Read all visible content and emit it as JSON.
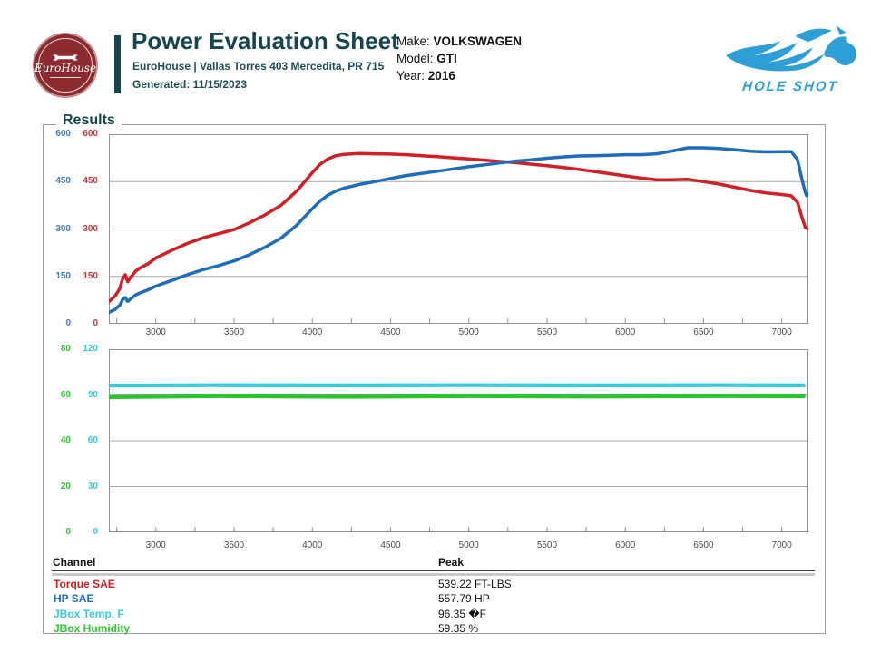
{
  "header": {
    "logo_text": "EuroHouse",
    "title": "Power Evaluation Sheet",
    "subtitle": "EuroHouse | Vallas Torres 403 Mercedita, PR 715",
    "generated": "Generated: 11/15/2023",
    "vehicle": {
      "make_label": "Make:",
      "make": "VOLKSWAGEN",
      "model_label": "Model:",
      "model": "GTI",
      "year_label": "Year:",
      "year": "2016"
    },
    "partner": "HOLE SHOT"
  },
  "results": {
    "legend": "Results"
  },
  "colors": {
    "teal": "#17454f",
    "maroon": "#8c2b2f",
    "partner_blue": "#2e9fd6",
    "torque_red": "#cd2027",
    "hp_blue": "#1f6cb8",
    "temp_cyan": "#35c8e4",
    "humidity_green": "#2cc42d",
    "grid": "#a8a8a8",
    "plot_border": "#8f9499"
  },
  "chart_data": [
    {
      "type": "line",
      "title": "",
      "xlabel": "",
      "x_range": [
        2700,
        7170
      ],
      "x_ticks": [
        3000,
        3500,
        4000,
        4500,
        5000,
        5500,
        6000,
        6500,
        7000
      ],
      "x_minor_tick_step": 250,
      "grid": true,
      "legend_position": "none",
      "axes": {
        "outer": {
          "name": "HP",
          "color": "#3d7dc4",
          "ticks": [
            600,
            450,
            300,
            150,
            0
          ],
          "range": [
            0,
            600
          ]
        },
        "inner": {
          "name": "Torque",
          "color": "#c43a3f",
          "ticks": [
            600,
            450,
            300,
            150,
            0
          ],
          "range": [
            0,
            600
          ]
        }
      },
      "series": [
        {
          "name": "Torque SAE",
          "color": "#cd2027",
          "axis_max": 600,
          "units": "FT-LBS",
          "peak": 539.22,
          "points": [
            [
              2700,
              70
            ],
            [
              2740,
              88
            ],
            [
              2770,
              112
            ],
            [
              2790,
              146
            ],
            [
              2805,
              155
            ],
            [
              2820,
              133
            ],
            [
              2840,
              147
            ],
            [
              2870,
              166
            ],
            [
              2900,
              177
            ],
            [
              2950,
              190
            ],
            [
              3000,
              208
            ],
            [
              3100,
              232
            ],
            [
              3200,
              254
            ],
            [
              3300,
              272
            ],
            [
              3400,
              285
            ],
            [
              3500,
              298
            ],
            [
              3600,
              320
            ],
            [
              3700,
              345
            ],
            [
              3800,
              375
            ],
            [
              3900,
              420
            ],
            [
              4000,
              478
            ],
            [
              4050,
              505
            ],
            [
              4100,
              522
            ],
            [
              4150,
              532
            ],
            [
              4200,
              536
            ],
            [
              4300,
              539
            ],
            [
              4400,
              538
            ],
            [
              4500,
              537
            ],
            [
              4600,
              535
            ],
            [
              4700,
              532
            ],
            [
              4800,
              529
            ],
            [
              4900,
              525
            ],
            [
              5000,
              522
            ],
            [
              5100,
              518
            ],
            [
              5200,
              514
            ],
            [
              5300,
              510
            ],
            [
              5400,
              505
            ],
            [
              5500,
              500
            ],
            [
              5600,
              495
            ],
            [
              5700,
              489
            ],
            [
              5800,
              482
            ],
            [
              5900,
              475
            ],
            [
              6000,
              468
            ],
            [
              6100,
              461
            ],
            [
              6200,
              456
            ],
            [
              6300,
              456
            ],
            [
              6400,
              457
            ],
            [
              6500,
              450
            ],
            [
              6600,
              442
            ],
            [
              6700,
              432
            ],
            [
              6800,
              422
            ],
            [
              6900,
              414
            ],
            [
              7000,
              409
            ],
            [
              7060,
              405
            ],
            [
              7100,
              385
            ],
            [
              7130,
              335
            ],
            [
              7150,
              305
            ],
            [
              7170,
              299
            ]
          ]
        },
        {
          "name": "HP SAE",
          "color": "#1f6cb8",
          "axis_max": 600,
          "units": "HP",
          "peak": 557.79,
          "points": [
            [
              2700,
              36
            ],
            [
              2740,
              46
            ],
            [
              2770,
              59
            ],
            [
              2790,
              78
            ],
            [
              2805,
              83
            ],
            [
              2820,
              71
            ],
            [
              2840,
              79
            ],
            [
              2870,
              91
            ],
            [
              2900,
              98
            ],
            [
              2950,
              107
            ],
            [
              3000,
              119
            ],
            [
              3100,
              137
            ],
            [
              3200,
              155
            ],
            [
              3300,
              171
            ],
            [
              3400,
              184
            ],
            [
              3500,
              199
            ],
            [
              3600,
              219
            ],
            [
              3700,
              243
            ],
            [
              3800,
              271
            ],
            [
              3900,
              312
            ],
            [
              4000,
              364
            ],
            [
              4050,
              389
            ],
            [
              4100,
              407
            ],
            [
              4150,
              420
            ],
            [
              4200,
              429
            ],
            [
              4300,
              441
            ],
            [
              4400,
              450
            ],
            [
              4500,
              460
            ],
            [
              4600,
              469
            ],
            [
              4700,
              476
            ],
            [
              4800,
              483
            ],
            [
              4900,
              490
            ],
            [
              5000,
              497
            ],
            [
              5100,
              503
            ],
            [
              5200,
              509
            ],
            [
              5300,
              515
            ],
            [
              5400,
              519
            ],
            [
              5500,
              524
            ],
            [
              5600,
              528
            ],
            [
              5700,
              531
            ],
            [
              5800,
              532
            ],
            [
              5900,
              533
            ],
            [
              6000,
              535
            ],
            [
              6100,
              535
            ],
            [
              6200,
              538
            ],
            [
              6300,
              547
            ],
            [
              6400,
              557
            ],
            [
              6500,
              557
            ],
            [
              6600,
              555
            ],
            [
              6700,
              551
            ],
            [
              6800,
              546
            ],
            [
              6900,
              544
            ],
            [
              7000,
              545
            ],
            [
              7060,
              545
            ],
            [
              7100,
              520
            ],
            [
              7130,
              455
            ],
            [
              7150,
              415
            ],
            [
              7158,
              406
            ],
            [
              7170,
              412
            ]
          ]
        }
      ]
    },
    {
      "type": "line",
      "title": "",
      "xlabel": "",
      "x_range": [
        2700,
        7170
      ],
      "x_ticks": [
        3000,
        3500,
        4000,
        4500,
        5000,
        5500,
        6000,
        6500,
        7000
      ],
      "x_minor_tick_step": 250,
      "grid": true,
      "legend_position": "none",
      "axes": {
        "outer": {
          "name": "Humidity %",
          "color": "#2cc42d",
          "ticks": [
            80,
            60,
            40,
            20,
            0
          ],
          "range": [
            0,
            80
          ]
        },
        "inner": {
          "name": "Temp F",
          "color": "#35c8e4",
          "ticks": [
            120,
            90,
            60,
            30,
            0
          ],
          "range": [
            0,
            120
          ]
        }
      },
      "series": [
        {
          "name": "JBox Temp. F",
          "color": "#35c8e4",
          "axis_max": 120,
          "units": "�F",
          "peak": 96.35,
          "points": [
            [
              2700,
              96.2
            ],
            [
              3400,
              96.4
            ],
            [
              4200,
              96.3
            ],
            [
              5000,
              96.4
            ],
            [
              5800,
              96.3
            ],
            [
              6600,
              96.4
            ],
            [
              7140,
              96.3
            ]
          ]
        },
        {
          "name": "JBox Humidity",
          "color": "#2cc42d",
          "axis_max": 80,
          "units": "%",
          "peak": 59.35,
          "points": [
            [
              2700,
              59.0
            ],
            [
              3400,
              59.5
            ],
            [
              4200,
              59.2
            ],
            [
              5000,
              59.5
            ],
            [
              5800,
              59.3
            ],
            [
              6600,
              59.5
            ],
            [
              7140,
              59.4
            ]
          ]
        }
      ]
    }
  ],
  "table": {
    "headers": [
      "Channel",
      "Peak"
    ],
    "rows": [
      {
        "channel": "Torque SAE",
        "peak": "539.22 FT-LBS",
        "color": "#cd2027"
      },
      {
        "channel": "HP SAE",
        "peak": "557.79 HP",
        "color": "#1f6cb8"
      },
      {
        "channel": "JBox Temp. F",
        "peak": "96.35 �F",
        "color": "#35c8e4"
      },
      {
        "channel": "JBox Humidity",
        "peak": "59.35 %",
        "color": "#2cc42d"
      }
    ]
  }
}
